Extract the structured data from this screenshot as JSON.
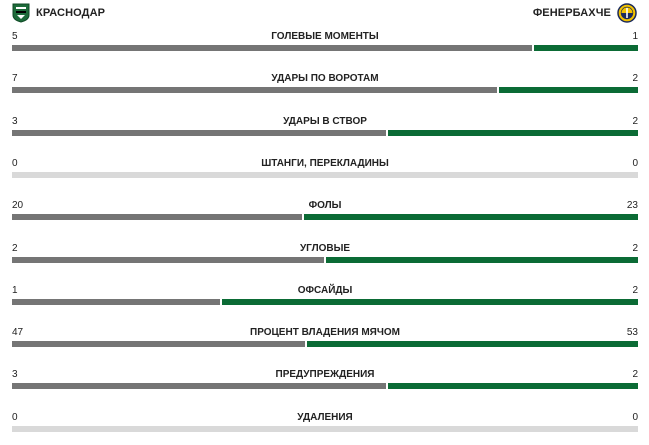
{
  "home_team": {
    "name": "КРАСНОДАР",
    "crest_icon": "krasnodar-crest-icon"
  },
  "away_team": {
    "name": "ФЕНЕРБАХЧЕ",
    "crest_icon": "fenerbahce-crest-icon"
  },
  "colors": {
    "home_bar": "#757575",
    "away_bar": "#0b6b35",
    "empty_bar": "#d9d9d9"
  },
  "stats": [
    {
      "label": "ГОЛЕВЫЕ МОМЕНТЫ",
      "home": "5",
      "away": "1",
      "home_share": 0.833
    },
    {
      "label": "УДАРЫ ПО ВОРОТАМ",
      "home": "7",
      "away": "2",
      "home_share": 0.778
    },
    {
      "label": "УДАРЫ В СТВОР",
      "home": "3",
      "away": "2",
      "home_share": 0.6
    },
    {
      "label": "ШТАНГИ, ПЕРЕКЛАДИНЫ",
      "home": "0",
      "away": "0",
      "home_share": null
    },
    {
      "label": "ФОЛЫ",
      "home": "20",
      "away": "23",
      "home_share": 0.465
    },
    {
      "label": "УГЛОВЫЕ",
      "home": "2",
      "away": "2",
      "home_share": 0.5
    },
    {
      "label": "ОФСАЙДЫ",
      "home": "1",
      "away": "2",
      "home_share": 0.333
    },
    {
      "label": "ПРОЦЕНТ ВЛАДЕНИЯ МЯЧОМ",
      "home": "47",
      "away": "53",
      "home_share": 0.47
    },
    {
      "label": "ПРЕДУПРЕЖДЕНИЯ",
      "home": "3",
      "away": "2",
      "home_share": 0.6
    },
    {
      "label": "УДАЛЕНИЯ",
      "home": "0",
      "away": "0",
      "home_share": null
    }
  ]
}
